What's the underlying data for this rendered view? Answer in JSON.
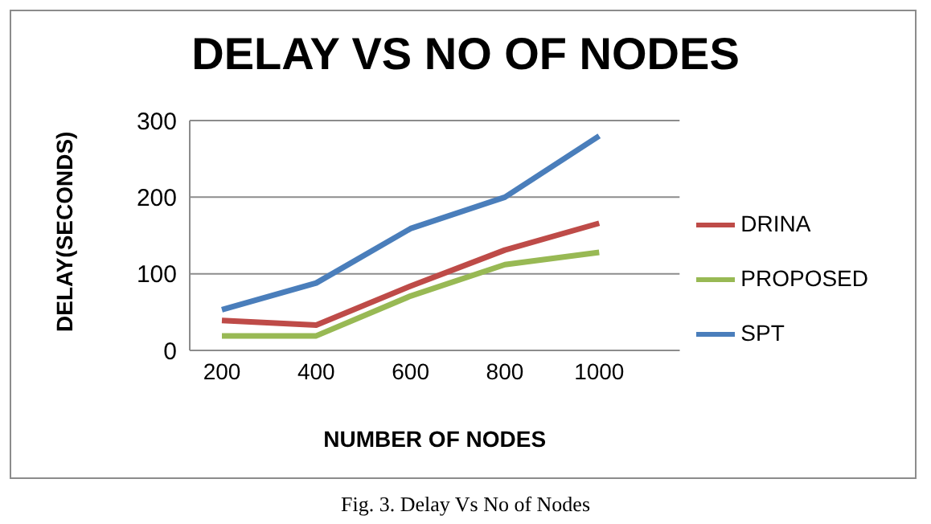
{
  "chart_data": {
    "type": "line",
    "title": "DELAY VS NO OF NODES",
    "xlabel": "NUMBER OF NODES",
    "ylabel": "DELAY(SECONDS)",
    "categories": [
      "200",
      "400",
      "600",
      "800",
      "1000"
    ],
    "series": [
      {
        "name": "SPT",
        "color": "#4a7ebb",
        "values": [
          53,
          88,
          159,
          200,
          280
        ]
      },
      {
        "name": "DRINA",
        "color": "#be4b48",
        "values": [
          39,
          33,
          84,
          131,
          166
        ]
      },
      {
        "name": "PROPOSED",
        "color": "#98b954",
        "values": [
          19,
          19,
          71,
          112,
          128
        ]
      }
    ],
    "ylim": [
      0,
      300
    ],
    "yticks": [
      0,
      100,
      200,
      300
    ],
    "grid": "y",
    "legend": "right",
    "marker": "none",
    "line_style": "solid",
    "annotations": [
      "Fig. 3. Delay Vs No of Nodes"
    ]
  }
}
